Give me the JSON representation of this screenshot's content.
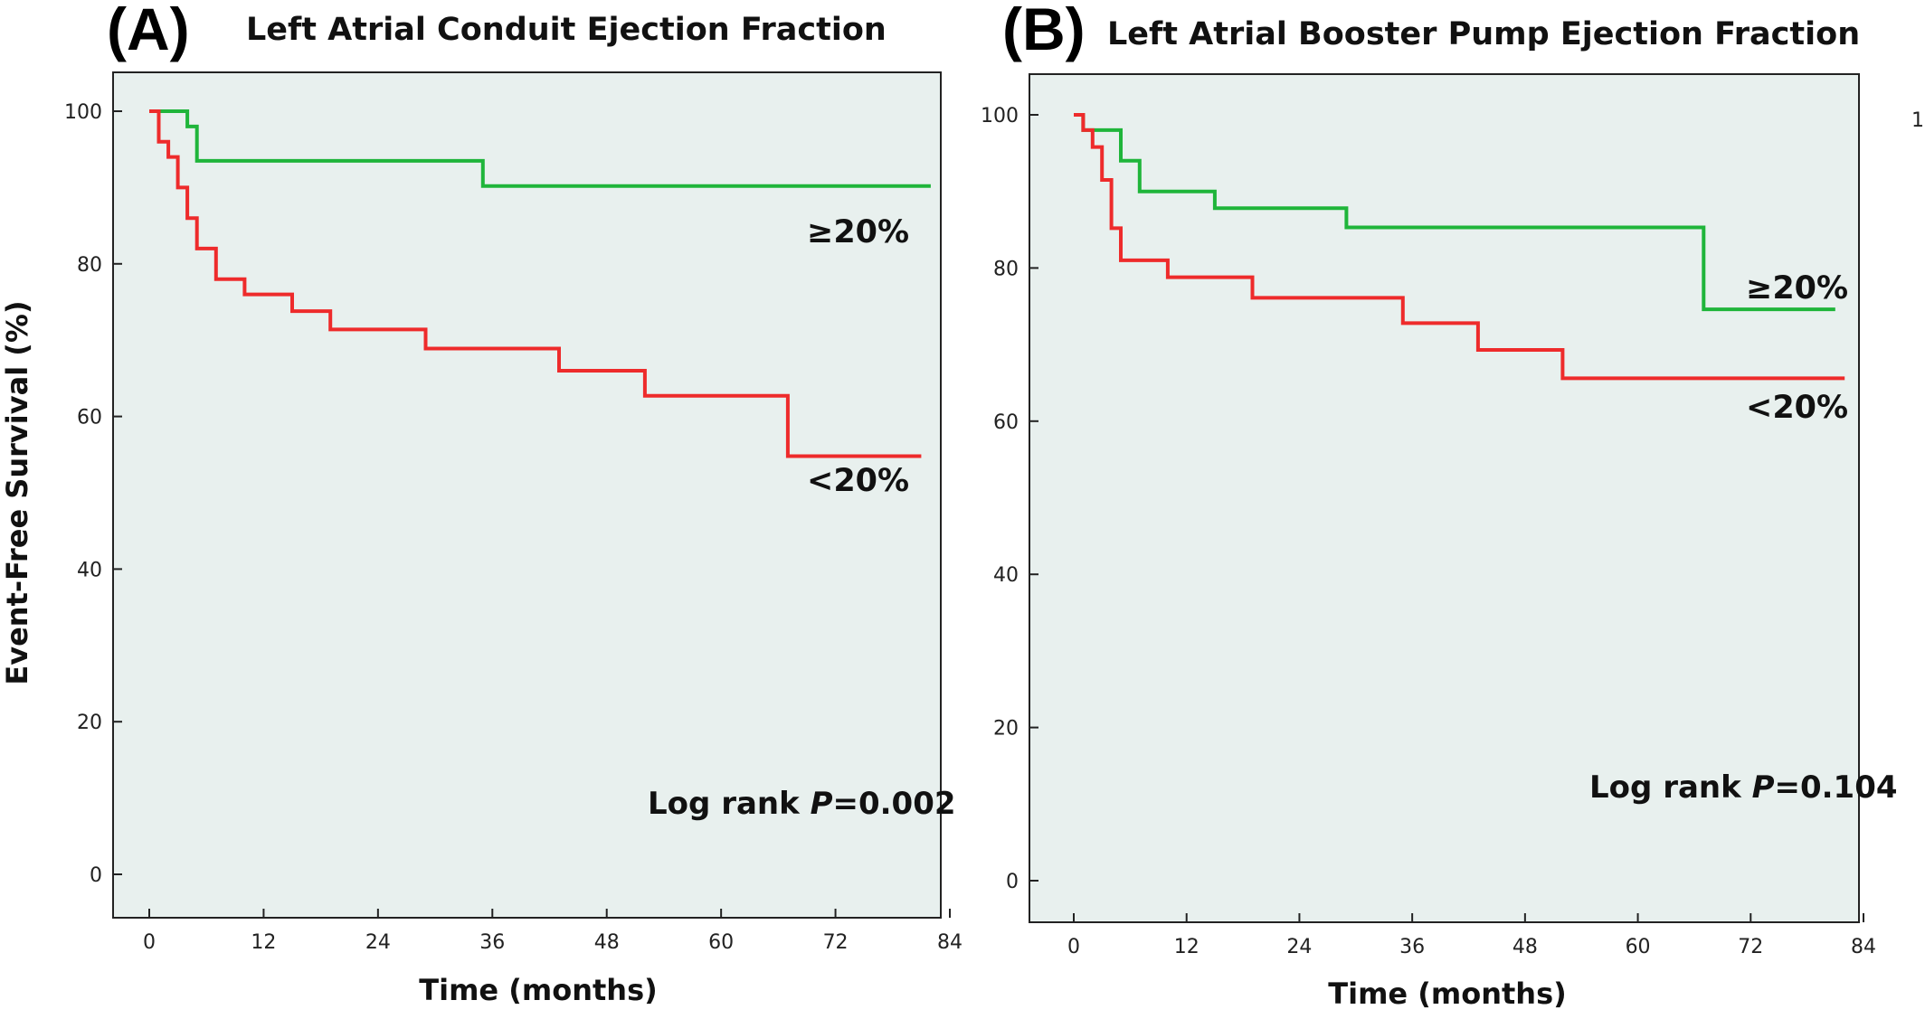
{
  "y_axis_title": "Event-Free Survival (%)",
  "colors": {
    "plot_bg": "#e8f0ee",
    "frame": "#222222",
    "green": "#1fb53a",
    "red": "#ee2b2b"
  },
  "panels": [
    {
      "letter": "(A)",
      "title": "Left Atrial Conduit Ejection Fraction",
      "xlabel": "Time (months)",
      "stat_prefix": "Log rank ",
      "stat_p": "P",
      "stat_value": "=0.002",
      "corner_mark": ""
    },
    {
      "letter": "(B)",
      "title": "Left Atrial Booster Pump Ejection Fraction",
      "xlabel": "Time (months)",
      "stat_prefix": "Log rank ",
      "stat_p": "P",
      "stat_value": "=0.104",
      "corner_mark": "1"
    }
  ],
  "chart_data": [
    {
      "type": "line",
      "title": "Left Atrial Conduit Ejection Fraction",
      "xlabel": "Time (months)",
      "ylabel": "Event-Free Survival (%)",
      "xlim": [
        0,
        84
      ],
      "ylim": [
        0,
        100
      ],
      "xticks": [
        0,
        12,
        24,
        36,
        48,
        60,
        72,
        84
      ],
      "yticks": [
        0,
        20,
        40,
        60,
        80,
        100
      ],
      "grid": false,
      "annotation": "Log rank P=0.002",
      "series": [
        {
          "name": "≥20%",
          "color": "#1fb53a",
          "step": true,
          "x": [
            0,
            4,
            5,
            35,
            82
          ],
          "y": [
            100,
            98,
            93.5,
            90.2,
            90.2
          ]
        },
        {
          "name": "<20%",
          "color": "#ee2b2b",
          "step": true,
          "x": [
            0,
            1,
            2,
            3,
            4,
            5,
            7,
            10,
            15,
            19,
            29,
            43,
            52,
            67,
            81
          ],
          "y": [
            100,
            96,
            94,
            90,
            86,
            82,
            78,
            76,
            73.8,
            71.4,
            68.9,
            66,
            62.7,
            54.8,
            54.8
          ]
        }
      ]
    },
    {
      "type": "line",
      "title": "Left Atrial Booster Pump Ejection Fraction",
      "xlabel": "Time (months)",
      "ylabel": "",
      "xlim": [
        0,
        84
      ],
      "ylim": [
        0,
        100
      ],
      "xticks": [
        0,
        12,
        24,
        36,
        48,
        60,
        72,
        84
      ],
      "yticks": [
        0,
        20,
        40,
        60,
        80,
        100
      ],
      "grid": false,
      "annotation": "Log rank P=0.104",
      "series": [
        {
          "name": "≥20%",
          "color": "#1fb53a",
          "step": true,
          "x": [
            0,
            1,
            5,
            7,
            15,
            29,
            67,
            81
          ],
          "y": [
            100,
            98,
            94,
            90,
            87.8,
            85.3,
            74.6,
            74.6
          ]
        },
        {
          "name": "<20%",
          "color": "#ee2b2b",
          "step": true,
          "x": [
            0,
            1,
            2,
            3,
            4,
            5,
            10,
            19,
            35,
            43,
            52,
            82
          ],
          "y": [
            100,
            98,
            95.8,
            91.5,
            85.2,
            81,
            78.8,
            76.1,
            72.8,
            69.3,
            65.6,
            65.6
          ]
        }
      ]
    }
  ]
}
